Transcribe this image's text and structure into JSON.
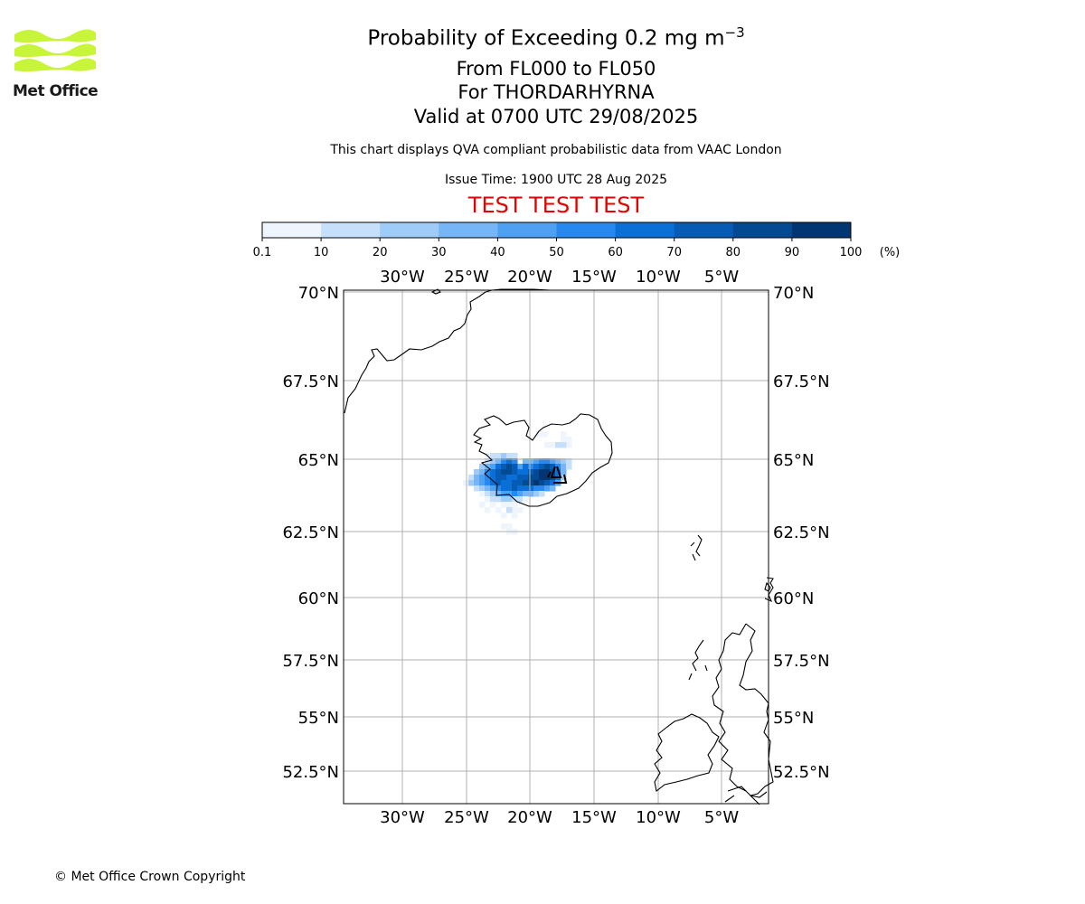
{
  "header": {
    "title_main": "Probability of Exceeding 0.2 mg m",
    "title_sup": "−3",
    "line_fl": "From FL000 to FL050",
    "line_volcano": "For THORDARHYRNA",
    "line_valid": "Valid at 0700 UTC 29/08/2025",
    "description": "This chart displays QVA compliant probabilistic data from VAAC London",
    "issue_time": "Issue Time: 1900 UTC 28 Aug 2025",
    "test_banner": "TEST TEST TEST",
    "test_color": "#e60000"
  },
  "logo": {
    "text": "Met Office",
    "icon": "met-office-wave-logo",
    "color": "#c8f53a"
  },
  "colorbar": {
    "ticks": [
      "0.1",
      "10",
      "20",
      "30",
      "40",
      "50",
      "60",
      "70",
      "80",
      "90",
      "100"
    ],
    "unit": "(%)",
    "colors": [
      "#eef5fd",
      "#c6e0fb",
      "#9fcbf8",
      "#76b5f6",
      "#4ea0f3",
      "#2789ef",
      "#0a6fd6",
      "#065cb4",
      "#044a93",
      "#023672"
    ]
  },
  "map": {
    "lon_labels": [
      "30°W",
      "25°W",
      "20°W",
      "15°W",
      "10°W",
      "5°W"
    ],
    "lat_labels": [
      "70°N",
      "67.5°N",
      "65°N",
      "62.5°N",
      "60°N",
      "57.5°N",
      "55°N",
      "52.5°N"
    ],
    "footer": "© Met Office Crown Copyright"
  }
}
